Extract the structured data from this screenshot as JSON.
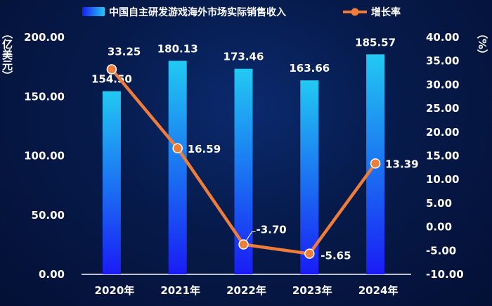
{
  "chart_data": {
    "type": "bar+line",
    "categories": [
      "2020年",
      "2021年",
      "2022年",
      "2023年",
      "2024年"
    ],
    "series": [
      {
        "name": "中国自主研发游戏海外市场实际销售收入",
        "type": "bar",
        "axis": "left",
        "values": [
          154.5,
          180.13,
          173.46,
          163.66,
          185.57
        ],
        "labels": [
          "154.50",
          "180.13",
          "173.46",
          "163.66",
          "185.57"
        ]
      },
      {
        "name": "增长率",
        "type": "line",
        "axis": "right",
        "values": [
          33.25,
          16.59,
          -3.7,
          -5.65,
          13.39
        ],
        "labels": [
          "33.25",
          "16.59",
          "-3.70",
          "-5.65",
          "13.39"
        ]
      }
    ],
    "y_left": {
      "unit": "（亿美元）",
      "range": [
        0,
        200
      ],
      "ticks": [
        "200.00",
        "150.00",
        "100.00",
        "50.00",
        "0.00"
      ],
      "tick_values": [
        200,
        150,
        100,
        50,
        0
      ]
    },
    "y_right": {
      "unit": "（%）",
      "range": [
        -10,
        40
      ],
      "ticks": [
        "40.00",
        "35.00",
        "30.00",
        "25.00",
        "20.00",
        "15.00",
        "10.00",
        "5.00",
        "0.00",
        "-5.00",
        "-10.00"
      ],
      "tick_values": [
        40,
        35,
        30,
        25,
        20,
        15,
        10,
        5,
        0,
        -5,
        -10
      ]
    },
    "legend_position": "top",
    "grid": false,
    "colors": {
      "bar_top": "#1fc8f0",
      "bar_bottom": "#1a1ef5",
      "line": "#f07c3a",
      "axis": "#ffffff"
    }
  }
}
